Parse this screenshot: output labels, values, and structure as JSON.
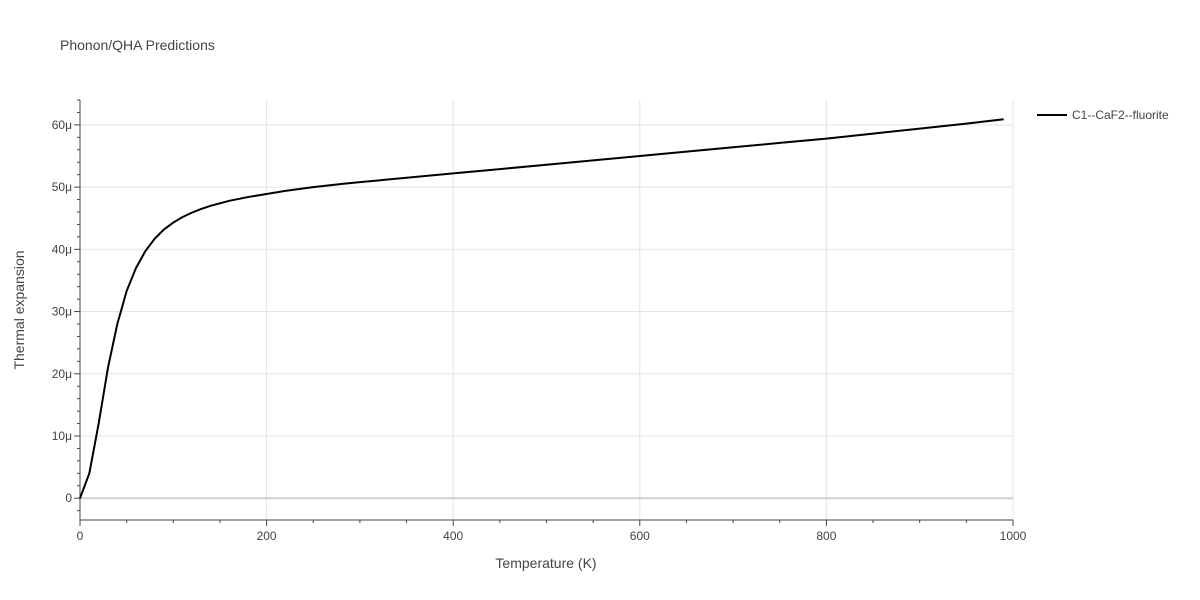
{
  "chart_data": {
    "type": "line",
    "title": "Phonon/QHA Predictions",
    "xlabel": "Temperature (K)",
    "ylabel": "Thermal expansion",
    "xlim": [
      0,
      1000
    ],
    "ylim": [
      -3.5e-06,
      6.4e-05
    ],
    "x_ticks": [
      0,
      200,
      400,
      600,
      800,
      1000
    ],
    "y_ticks": [
      {
        "value": 0,
        "label": "0"
      },
      {
        "value": 1e-05,
        "label": "10μ"
      },
      {
        "value": 2e-05,
        "label": "20μ"
      },
      {
        "value": 3e-05,
        "label": "30μ"
      },
      {
        "value": 4e-05,
        "label": "40μ"
      },
      {
        "value": 5e-05,
        "label": "50μ"
      },
      {
        "value": 6e-05,
        "label": "60μ"
      }
    ],
    "grid": true,
    "legend_position": "top-right",
    "series": [
      {
        "name": "C1--CaF2--fluorite",
        "color": "#000000",
        "x": [
          0,
          10,
          20,
          30,
          40,
          50,
          60,
          70,
          80,
          90,
          100,
          110,
          120,
          130,
          140,
          150,
          160,
          180,
          200,
          220,
          250,
          280,
          300,
          350,
          400,
          450,
          500,
          550,
          600,
          650,
          700,
          750,
          800,
          850,
          900,
          950,
          990
        ],
        "y": [
          0,
          4e-06,
          1.2e-05,
          2.1e-05,
          2.8e-05,
          3.33e-05,
          3.7e-05,
          3.97e-05,
          4.17e-05,
          4.32e-05,
          4.43e-05,
          4.52e-05,
          4.59e-05,
          4.65e-05,
          4.7e-05,
          4.74e-05,
          4.78e-05,
          4.84e-05,
          4.89e-05,
          4.94e-05,
          5e-05,
          5.05e-05,
          5.08e-05,
          5.15e-05,
          5.22e-05,
          5.29e-05,
          5.36e-05,
          5.43e-05,
          5.5e-05,
          5.57e-05,
          5.64e-05,
          5.71e-05,
          5.78e-05,
          5.86e-05,
          5.94e-05,
          6.02e-05,
          6.09e-05
        ]
      }
    ]
  }
}
